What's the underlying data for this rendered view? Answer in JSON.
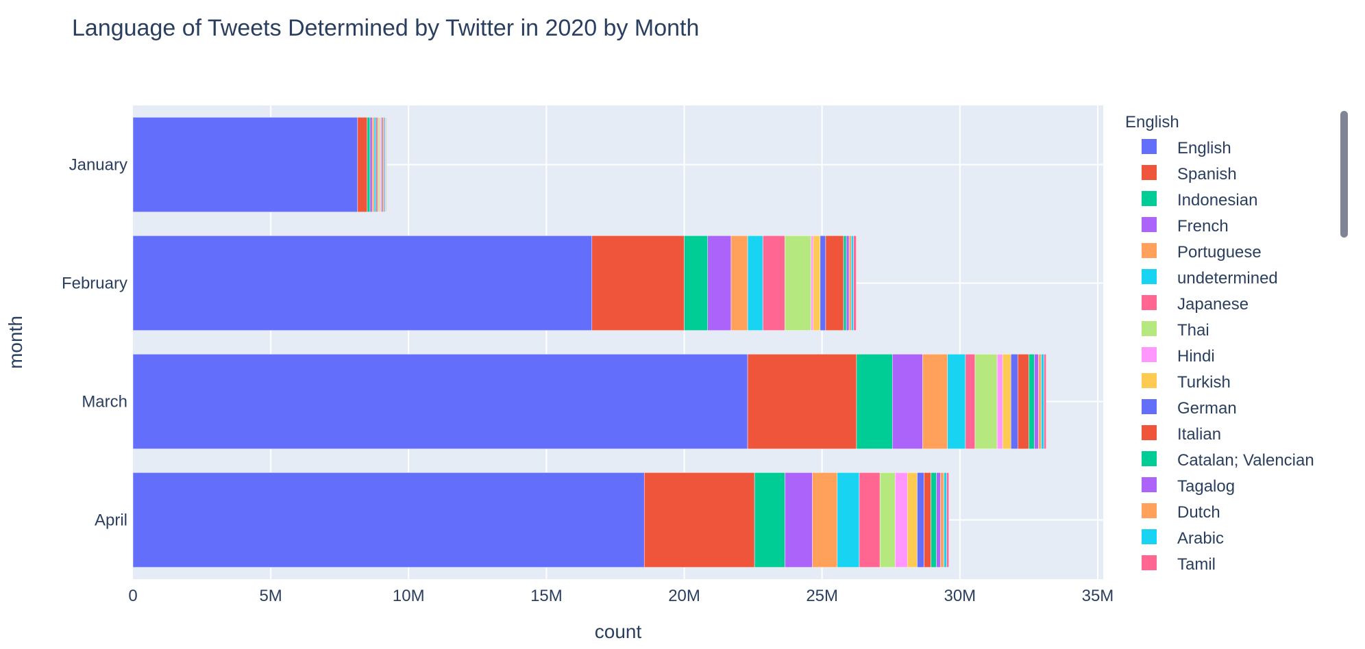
{
  "chart_data": {
    "type": "bar",
    "orientation": "horizontal",
    "barmode": "stack",
    "title": "Language of Tweets Determined by Twitter in 2020 by Month",
    "xlabel": "count",
    "ylabel": "month",
    "xlim": [
      0,
      35200000
    ],
    "xticks": [
      0,
      5000000,
      10000000,
      15000000,
      20000000,
      25000000,
      30000000,
      35000000
    ],
    "xtick_labels": [
      "0",
      "5M",
      "10M",
      "15M",
      "20M",
      "25M",
      "30M",
      "35M"
    ],
    "categories": [
      "January",
      "February",
      "March",
      "April"
    ],
    "grid": true,
    "legend_title": "English",
    "legend_position": "right",
    "series": [
      {
        "name": "English",
        "color": "#636efa",
        "values": [
          8150000,
          16650000,
          22300000,
          18550000
        ]
      },
      {
        "name": "Spanish",
        "color": "#ef553b",
        "values": [
          350000,
          3350000,
          3950000,
          4000000
        ]
      },
      {
        "name": "Indonesian",
        "color": "#00cc96",
        "values": [
          100000,
          850000,
          1300000,
          1100000
        ]
      },
      {
        "name": "French",
        "color": "#ab63fa",
        "values": [
          80000,
          850000,
          1100000,
          1000000
        ]
      },
      {
        "name": "Portuguese",
        "color": "#ffa15a",
        "values": [
          70000,
          600000,
          900000,
          900000
        ]
      },
      {
        "name": "undetermined",
        "color": "#19d3f3",
        "values": [
          70000,
          550000,
          650000,
          800000
        ]
      },
      {
        "name": "Japanese",
        "color": "#ff6692",
        "values": [
          60000,
          800000,
          350000,
          750000
        ]
      },
      {
        "name": "Thai",
        "color": "#b6e880",
        "values": [
          60000,
          950000,
          800000,
          550000
        ]
      },
      {
        "name": "Hindi",
        "color": "#ff97ff",
        "values": [
          40000,
          80000,
          200000,
          450000
        ]
      },
      {
        "name": "Turkish",
        "color": "#fecb52",
        "values": [
          40000,
          250000,
          300000,
          350000
        ]
      },
      {
        "name": "German",
        "color": "#636efa",
        "values": [
          35000,
          200000,
          250000,
          250000
        ]
      },
      {
        "name": "Italian",
        "color": "#ef553b",
        "values": [
          35000,
          650000,
          400000,
          250000
        ]
      },
      {
        "name": "Catalan; Valencian",
        "color": "#00cc96",
        "values": [
          30000,
          100000,
          200000,
          200000
        ]
      },
      {
        "name": "Tagalog",
        "color": "#ab63fa",
        "values": [
          30000,
          100000,
          150000,
          150000
        ]
      },
      {
        "name": "Dutch",
        "color": "#ffa15a",
        "values": [
          25000,
          80000,
          100000,
          120000
        ]
      },
      {
        "name": "Arabic",
        "color": "#19d3f3",
        "values": [
          25000,
          80000,
          100000,
          100000
        ]
      },
      {
        "name": "Tamil",
        "color": "#ff6692",
        "values": [
          20000,
          100000,
          80000,
          80000
        ]
      }
    ]
  }
}
